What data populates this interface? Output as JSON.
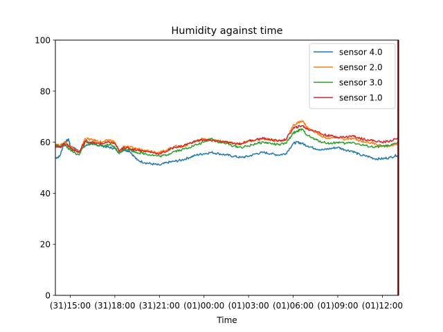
{
  "chart_data": {
    "type": "line",
    "title": "Humidity against  time",
    "xlabel": "Time",
    "ylabel": "",
    "x_unit": "hours",
    "x_tick_values": [
      15,
      18,
      21,
      24,
      27,
      30,
      33,
      36
    ],
    "x_tick_labels": [
      "(31)15:00",
      "(31)18:00",
      "(31)21:00",
      "(01)00:00",
      "(01)03:00",
      "(01)06:00",
      "(01)09:00",
      "(01)12:00"
    ],
    "y_ticks": [
      0,
      20,
      40,
      60,
      80,
      100
    ],
    "xlim": [
      14.0,
      37.1
    ],
    "ylim": [
      0,
      100
    ],
    "grid": false,
    "legend_position": "top-right",
    "vertical_marker": {
      "x": 37.05,
      "color": "#8b0000"
    },
    "series": [
      {
        "name": "sensor 4.0",
        "color": "#1f77b4",
        "x": [
          14.0,
          14.3,
          14.6,
          14.9,
          15.0,
          15.3,
          15.6,
          16.0,
          16.4,
          16.8,
          17.2,
          17.6,
          18.0,
          18.3,
          18.6,
          19.0,
          19.5,
          20.0,
          20.5,
          21.0,
          21.5,
          22.0,
          22.5,
          23.0,
          23.5,
          24.0,
          24.5,
          25.0,
          25.5,
          26.0,
          26.5,
          27.0,
          27.5,
          28.0,
          28.5,
          29.0,
          29.5,
          30.0,
          30.3,
          30.6,
          31.0,
          31.5,
          32.0,
          32.5,
          33.0,
          33.5,
          34.0,
          34.5,
          35.0,
          35.5,
          36.0,
          36.5,
          37.05
        ],
        "values": [
          53.8,
          54.5,
          60.0,
          61.0,
          58.5,
          57.5,
          56.5,
          58.5,
          59.5,
          59.0,
          58.5,
          58.0,
          57.5,
          56.0,
          57.0,
          56.5,
          53.0,
          52.0,
          51.5,
          51.0,
          52.0,
          52.5,
          53.0,
          54.0,
          55.0,
          55.5,
          56.0,
          55.5,
          55.0,
          54.5,
          54.0,
          54.5,
          55.5,
          56.0,
          55.5,
          55.0,
          55.5,
          59.5,
          60.0,
          59.5,
          58.5,
          57.5,
          57.0,
          57.5,
          58.0,
          57.0,
          56.5,
          55.0,
          54.5,
          53.5,
          53.5,
          54.0,
          55.0
        ]
      },
      {
        "name": "sensor 2.0",
        "color": "#ff7f0e",
        "x": [
          14.0,
          14.3,
          14.6,
          14.9,
          15.2,
          15.6,
          16.0,
          16.4,
          16.8,
          17.2,
          17.6,
          18.0,
          18.3,
          18.6,
          19.0,
          19.5,
          20.0,
          20.5,
          21.0,
          21.5,
          22.0,
          22.5,
          23.0,
          23.5,
          24.0,
          24.5,
          25.0,
          25.5,
          26.0,
          26.5,
          27.0,
          27.5,
          28.0,
          28.5,
          29.0,
          29.5,
          30.0,
          30.3,
          30.6,
          31.0,
          31.5,
          32.0,
          32.5,
          33.0,
          33.5,
          34.0,
          34.5,
          35.0,
          35.5,
          36.0,
          36.5,
          37.05
        ],
        "values": [
          59.5,
          58.5,
          60.0,
          59.0,
          57.5,
          56.0,
          61.5,
          61.0,
          60.5,
          60.0,
          61.0,
          60.0,
          56.0,
          58.5,
          58.0,
          57.5,
          57.0,
          56.5,
          56.0,
          57.0,
          58.5,
          58.0,
          59.5,
          60.5,
          61.5,
          61.0,
          60.5,
          60.0,
          59.5,
          59.0,
          60.5,
          61.0,
          61.5,
          61.0,
          60.5,
          61.0,
          66.5,
          67.5,
          68.5,
          65.5,
          64.0,
          62.0,
          61.5,
          62.0,
          61.0,
          61.5,
          60.5,
          60.0,
          59.5,
          58.5,
          58.5,
          59.5
        ]
      },
      {
        "name": "sensor 3.0",
        "color": "#2ca02c",
        "x": [
          14.0,
          14.3,
          14.6,
          14.9,
          15.2,
          15.6,
          16.0,
          16.4,
          16.8,
          17.2,
          17.6,
          18.0,
          18.3,
          18.6,
          19.0,
          19.5,
          20.0,
          20.5,
          21.0,
          21.5,
          22.0,
          22.5,
          23.0,
          23.5,
          24.0,
          24.5,
          25.0,
          25.5,
          26.0,
          26.5,
          27.0,
          27.5,
          28.0,
          28.5,
          29.0,
          29.5,
          30.0,
          30.3,
          30.6,
          31.0,
          31.5,
          32.0,
          32.5,
          33.0,
          33.5,
          34.0,
          34.5,
          35.0,
          35.5,
          36.0,
          36.5,
          37.05
        ],
        "values": [
          59.0,
          58.0,
          59.0,
          57.5,
          56.0,
          55.0,
          60.0,
          59.5,
          59.0,
          58.5,
          59.0,
          58.0,
          55.5,
          57.5,
          57.0,
          56.0,
          55.5,
          55.0,
          54.5,
          55.0,
          56.5,
          57.0,
          58.0,
          59.0,
          60.0,
          61.5,
          60.0,
          59.5,
          58.5,
          58.0,
          58.5,
          59.5,
          60.0,
          59.5,
          59.0,
          59.5,
          63.5,
          64.5,
          65.0,
          62.5,
          61.0,
          60.0,
          59.5,
          60.0,
          59.5,
          60.0,
          59.0,
          58.5,
          58.0,
          58.5,
          58.5,
          60.0
        ]
      },
      {
        "name": "sensor 1.0",
        "color": "#d62728",
        "x": [
          14.0,
          14.3,
          14.6,
          14.9,
          15.2,
          15.6,
          16.0,
          16.4,
          16.8,
          17.2,
          17.6,
          18.0,
          18.3,
          18.6,
          19.0,
          19.5,
          20.0,
          20.5,
          21.0,
          21.5,
          22.0,
          22.5,
          23.0,
          23.5,
          24.0,
          24.5,
          25.0,
          25.5,
          26.0,
          26.5,
          27.0,
          27.5,
          28.0,
          28.5,
          29.0,
          29.5,
          30.0,
          30.3,
          30.6,
          31.0,
          31.5,
          32.0,
          32.5,
          33.0,
          33.5,
          34.0,
          34.5,
          35.0,
          35.5,
          36.0,
          36.5,
          37.05
        ],
        "values": [
          58.5,
          58.0,
          59.5,
          58.5,
          57.0,
          56.0,
          60.5,
          60.0,
          59.5,
          59.5,
          60.0,
          59.5,
          56.5,
          58.0,
          57.5,
          57.0,
          56.5,
          56.0,
          55.5,
          56.5,
          58.0,
          58.5,
          59.5,
          60.5,
          61.0,
          60.5,
          60.5,
          60.0,
          59.5,
          59.5,
          60.5,
          61.0,
          61.5,
          61.0,
          60.5,
          61.0,
          65.5,
          66.0,
          66.5,
          65.0,
          64.5,
          63.0,
          62.5,
          62.0,
          62.0,
          62.5,
          61.5,
          61.0,
          60.5,
          60.0,
          60.5,
          61.5
        ]
      }
    ]
  }
}
